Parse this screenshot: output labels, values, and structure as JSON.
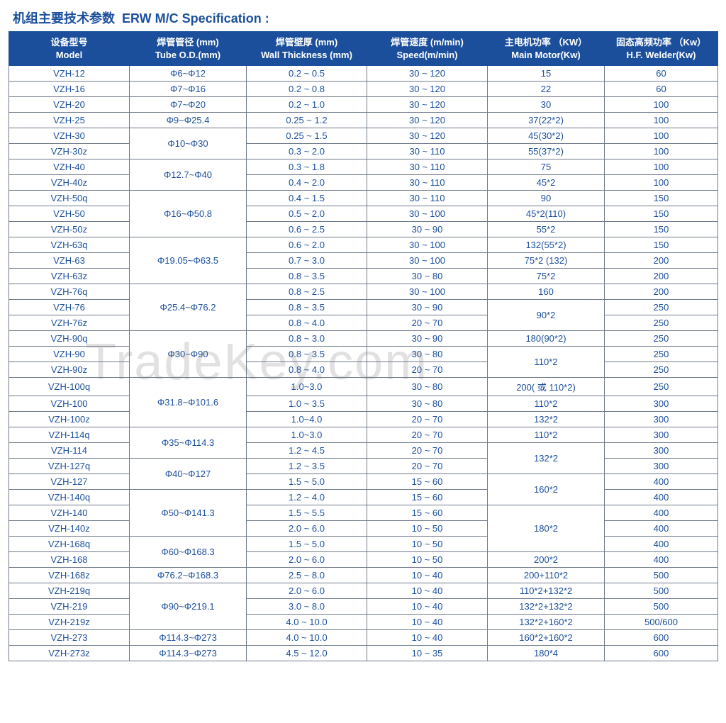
{
  "title": {
    "cn": "机组主要技术参数",
    "en": "ERW M/C Specification :"
  },
  "colors": {
    "header_bg": "#1b4f9c",
    "text": "#1b4f9c",
    "border": "#707a8a"
  },
  "watermark": "TradeKey.com",
  "headers": [
    {
      "cn": "设备型号",
      "en": "Model"
    },
    {
      "cn": "焊管管径 (mm)",
      "en": "Tube O.D.(mm)"
    },
    {
      "cn": "焊管壁厚 (mm)",
      "en": "Wall Thickness (mm)"
    },
    {
      "cn": "焊管速度 (m/min)",
      "en": "Speed(m/min)"
    },
    {
      "cn": "主电机功率 （KW）",
      "en": "Main Motor(Kw)"
    },
    {
      "cn": "固态高频功率 （Kw）",
      "en": "H.F. Welder(Kw)"
    }
  ],
  "rows": [
    {
      "model": "VZH-12",
      "od": "Φ6~Φ12",
      "thick": "0.2 ~ 0.5",
      "speed": "30 ~ 120",
      "motor": "15",
      "hf": "60"
    },
    {
      "model": "VZH-16",
      "od": "Φ7~Φ16",
      "thick": "0.2 ~ 0.8",
      "speed": "30 ~ 120",
      "motor": "22",
      "hf": "60"
    },
    {
      "model": "VZH-20",
      "od": "Φ7~Φ20",
      "thick": "0.2 ~ 1.0",
      "speed": "30 ~ 120",
      "motor": "30",
      "hf": "100"
    },
    {
      "model": "VZH-25",
      "od": "Φ9~Φ25.4",
      "thick": "0.25 ~ 1.2",
      "speed": "30 ~ 120",
      "motor": "37(22*2)",
      "hf": "100"
    },
    {
      "model": "VZH-30",
      "od": "Φ10~Φ30",
      "od_span": 2,
      "thick": "0.25 ~ 1.5",
      "speed": "30 ~ 120",
      "motor": "45(30*2)",
      "hf": "100"
    },
    {
      "model": "VZH-30z",
      "thick": "0.3 ~ 2.0",
      "speed": "30 ~ 110",
      "motor": "55(37*2)",
      "hf": "100"
    },
    {
      "model": "VZH-40",
      "od": "Φ12.7~Φ40",
      "od_span": 2,
      "thick": "0.3 ~ 1.8",
      "speed": "30 ~ 110",
      "motor": "75",
      "hf": "100"
    },
    {
      "model": "VZH-40z",
      "thick": "0.4 ~ 2.0",
      "speed": "30 ~ 110",
      "motor": "45*2",
      "hf": "100"
    },
    {
      "model": "VZH-50q",
      "od": "Φ16~Φ50.8",
      "od_span": 3,
      "thick": "0.4 ~ 1.5",
      "speed": "30 ~ 110",
      "motor": "90",
      "hf": "150"
    },
    {
      "model": "VZH-50",
      "thick": "0.5 ~ 2.0",
      "speed": "30 ~ 100",
      "motor": "45*2(110)",
      "hf": "150"
    },
    {
      "model": "VZH-50z",
      "thick": "0.6 ~ 2.5",
      "speed": "30 ~ 90",
      "motor": "55*2",
      "hf": "150"
    },
    {
      "model": "VZH-63q",
      "od": "Φ19.05~Φ63.5",
      "od_span": 3,
      "thick": "0.6 ~ 2.0",
      "speed": "30 ~ 100",
      "motor": "132(55*2)",
      "hf": "150"
    },
    {
      "model": "VZH-63",
      "thick": "0.7 ~ 3.0",
      "speed": "30 ~ 100",
      "motor": "75*2 (132)",
      "hf": "200"
    },
    {
      "model": "VZH-63z",
      "thick": "0.8 ~ 3.5",
      "speed": "30 ~ 80",
      "motor": "75*2",
      "hf": "200"
    },
    {
      "model": "VZH-76q",
      "od": "Φ25.4~Φ76.2",
      "od_span": 3,
      "thick": "0.8 ~ 2.5",
      "speed": "30 ~ 100",
      "motor": "160",
      "hf": "200"
    },
    {
      "model": "VZH-76",
      "thick": "0.8 ~ 3.5",
      "speed": "30 ~ 90",
      "motor": "90*2",
      "motor_span": 2,
      "hf": "250"
    },
    {
      "model": "VZH-76z",
      "thick": "0.8 ~ 4.0",
      "speed": "20 ~ 70",
      "hf": "250"
    },
    {
      "model": "VZH-90q",
      "od": "Φ30~Φ90",
      "od_span": 3,
      "thick": "0.8 ~ 3.0",
      "speed": "30 ~ 90",
      "motor": "180(90*2)",
      "hf": "250"
    },
    {
      "model": "VZH-90",
      "thick": "0.8 ~ 3.5",
      "speed": "30 ~ 80",
      "motor": "110*2",
      "motor_span": 2,
      "hf": "250"
    },
    {
      "model": "VZH-90z",
      "thick": "0.8 ~ 4.0",
      "speed": "20 ~ 70",
      "hf": "250"
    },
    {
      "model": "VZH-100q",
      "od": "Φ31.8~Φ101.6",
      "od_span": 3,
      "thick": "1.0~3.0",
      "speed": "30 ~ 80",
      "motor": "200( 或 110*2)",
      "hf": "250"
    },
    {
      "model": "VZH-100",
      "thick": "1.0 ~ 3.5",
      "speed": "30 ~ 80",
      "motor": "110*2",
      "hf": "300"
    },
    {
      "model": "VZH-100z",
      "thick": "1.0~4.0",
      "speed": "20 ~ 70",
      "motor": "132*2",
      "hf": "300"
    },
    {
      "model": "VZH-114q",
      "od": "Φ35~Φ114.3",
      "od_span": 2,
      "thick": "1.0~3.0",
      "speed": "20 ~ 70",
      "motor": "110*2",
      "hf": "300"
    },
    {
      "model": "VZH-114",
      "thick": "1.2 ~ 4.5",
      "speed": "20 ~ 70",
      "motor": "132*2",
      "motor_span": 2,
      "hf": "300"
    },
    {
      "model": "VZH-127q",
      "od": "Φ40~Φ127",
      "od_span": 2,
      "thick": "1.2 ~ 3.5",
      "speed": "20 ~ 70",
      "hf": "300"
    },
    {
      "model": "VZH-127",
      "thick": "1.5 ~ 5.0",
      "speed": "15 ~ 60",
      "motor": "160*2",
      "motor_span": 2,
      "hf": "400"
    },
    {
      "model": "VZH-140q",
      "od": "Φ50~Φ141.3",
      "od_span": 3,
      "thick": "1.2 ~ 4.0",
      "speed": "15 ~ 60",
      "hf": "400"
    },
    {
      "model": "VZH-140",
      "thick": "1.5 ~ 5.5",
      "speed": "15 ~ 60",
      "motor": "180*2",
      "motor_span": 3,
      "hf": "400"
    },
    {
      "model": "VZH-140z",
      "thick": "2.0 ~ 6.0",
      "speed": "10 ~ 50",
      "hf": "400"
    },
    {
      "model": "VZH-168q",
      "od": "Φ60~Φ168.3",
      "od_span": 2,
      "thick": "1.5 ~ 5.0",
      "speed": "10 ~ 50",
      "hf": "400"
    },
    {
      "model": "VZH-168",
      "thick": "2.0 ~ 6.0",
      "speed": "10 ~ 50",
      "motor": "200*2",
      "hf": "400"
    },
    {
      "model": "VZH-168z",
      "od": "Φ76.2~Φ168.3",
      "thick": "2.5 ~ 8.0",
      "speed": "10 ~ 40",
      "motor": "200+110*2",
      "hf": "500"
    },
    {
      "model": "VZH-219q",
      "od": "Φ90~Φ219.1",
      "od_span": 3,
      "thick": "2.0 ~ 6.0",
      "speed": "10 ~ 40",
      "motor": "110*2+132*2",
      "hf": "500"
    },
    {
      "model": "VZH-219",
      "thick": "3.0 ~ 8.0",
      "speed": "10 ~ 40",
      "motor": "132*2+132*2",
      "hf": "500"
    },
    {
      "model": "VZH-219z",
      "thick": "4.0 ~ 10.0",
      "speed": "10 ~ 40",
      "motor": "132*2+160*2",
      "hf": "500/600"
    },
    {
      "model": "VZH-273",
      "od": "Φ114.3~Φ273",
      "thick": "4.0 ~ 10.0",
      "speed": "10 ~ 40",
      "motor": "160*2+160*2",
      "hf": "600"
    },
    {
      "model": "VZH-273z",
      "od": "Φ114.3~Φ273",
      "thick": "4.5 ~ 12.0",
      "speed": "10 ~ 35",
      "motor": "180*4",
      "hf": "600"
    }
  ]
}
